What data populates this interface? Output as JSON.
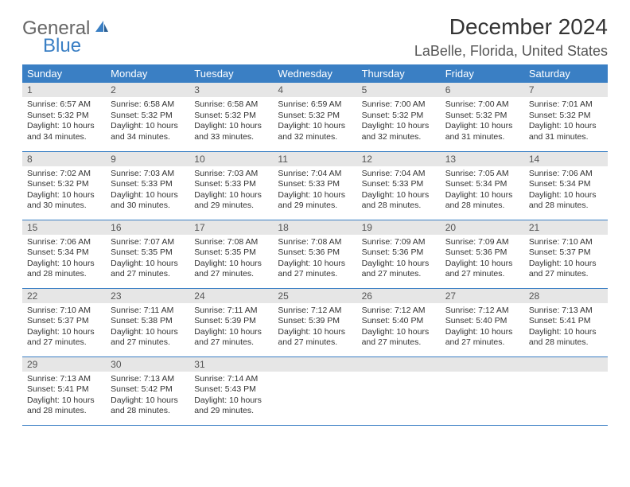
{
  "logo": {
    "word1": "General",
    "word2": "Blue"
  },
  "title": "December 2024",
  "subtitle": "LaBelle, Florida, United States",
  "colors": {
    "accent": "#3a7fc4",
    "daynum_bg": "#e6e6e6",
    "text": "#333333"
  },
  "weekdays": [
    "Sunday",
    "Monday",
    "Tuesday",
    "Wednesday",
    "Thursday",
    "Friday",
    "Saturday"
  ],
  "weeks": [
    [
      {
        "n": "1",
        "sr": "6:57 AM",
        "ss": "5:32 PM",
        "dl": "10 hours and 34 minutes."
      },
      {
        "n": "2",
        "sr": "6:58 AM",
        "ss": "5:32 PM",
        "dl": "10 hours and 34 minutes."
      },
      {
        "n": "3",
        "sr": "6:58 AM",
        "ss": "5:32 PM",
        "dl": "10 hours and 33 minutes."
      },
      {
        "n": "4",
        "sr": "6:59 AM",
        "ss": "5:32 PM",
        "dl": "10 hours and 32 minutes."
      },
      {
        "n": "5",
        "sr": "7:00 AM",
        "ss": "5:32 PM",
        "dl": "10 hours and 32 minutes."
      },
      {
        "n": "6",
        "sr": "7:00 AM",
        "ss": "5:32 PM",
        "dl": "10 hours and 31 minutes."
      },
      {
        "n": "7",
        "sr": "7:01 AM",
        "ss": "5:32 PM",
        "dl": "10 hours and 31 minutes."
      }
    ],
    [
      {
        "n": "8",
        "sr": "7:02 AM",
        "ss": "5:32 PM",
        "dl": "10 hours and 30 minutes."
      },
      {
        "n": "9",
        "sr": "7:03 AM",
        "ss": "5:33 PM",
        "dl": "10 hours and 30 minutes."
      },
      {
        "n": "10",
        "sr": "7:03 AM",
        "ss": "5:33 PM",
        "dl": "10 hours and 29 minutes."
      },
      {
        "n": "11",
        "sr": "7:04 AM",
        "ss": "5:33 PM",
        "dl": "10 hours and 29 minutes."
      },
      {
        "n": "12",
        "sr": "7:04 AM",
        "ss": "5:33 PM",
        "dl": "10 hours and 28 minutes."
      },
      {
        "n": "13",
        "sr": "7:05 AM",
        "ss": "5:34 PM",
        "dl": "10 hours and 28 minutes."
      },
      {
        "n": "14",
        "sr": "7:06 AM",
        "ss": "5:34 PM",
        "dl": "10 hours and 28 minutes."
      }
    ],
    [
      {
        "n": "15",
        "sr": "7:06 AM",
        "ss": "5:34 PM",
        "dl": "10 hours and 28 minutes."
      },
      {
        "n": "16",
        "sr": "7:07 AM",
        "ss": "5:35 PM",
        "dl": "10 hours and 27 minutes."
      },
      {
        "n": "17",
        "sr": "7:08 AM",
        "ss": "5:35 PM",
        "dl": "10 hours and 27 minutes."
      },
      {
        "n": "18",
        "sr": "7:08 AM",
        "ss": "5:36 PM",
        "dl": "10 hours and 27 minutes."
      },
      {
        "n": "19",
        "sr": "7:09 AM",
        "ss": "5:36 PM",
        "dl": "10 hours and 27 minutes."
      },
      {
        "n": "20",
        "sr": "7:09 AM",
        "ss": "5:36 PM",
        "dl": "10 hours and 27 minutes."
      },
      {
        "n": "21",
        "sr": "7:10 AM",
        "ss": "5:37 PM",
        "dl": "10 hours and 27 minutes."
      }
    ],
    [
      {
        "n": "22",
        "sr": "7:10 AM",
        "ss": "5:37 PM",
        "dl": "10 hours and 27 minutes."
      },
      {
        "n": "23",
        "sr": "7:11 AM",
        "ss": "5:38 PM",
        "dl": "10 hours and 27 minutes."
      },
      {
        "n": "24",
        "sr": "7:11 AM",
        "ss": "5:39 PM",
        "dl": "10 hours and 27 minutes."
      },
      {
        "n": "25",
        "sr": "7:12 AM",
        "ss": "5:39 PM",
        "dl": "10 hours and 27 minutes."
      },
      {
        "n": "26",
        "sr": "7:12 AM",
        "ss": "5:40 PM",
        "dl": "10 hours and 27 minutes."
      },
      {
        "n": "27",
        "sr": "7:12 AM",
        "ss": "5:40 PM",
        "dl": "10 hours and 27 minutes."
      },
      {
        "n": "28",
        "sr": "7:13 AM",
        "ss": "5:41 PM",
        "dl": "10 hours and 28 minutes."
      }
    ],
    [
      {
        "n": "29",
        "sr": "7:13 AM",
        "ss": "5:41 PM",
        "dl": "10 hours and 28 minutes."
      },
      {
        "n": "30",
        "sr": "7:13 AM",
        "ss": "5:42 PM",
        "dl": "10 hours and 28 minutes."
      },
      {
        "n": "31",
        "sr": "7:14 AM",
        "ss": "5:43 PM",
        "dl": "10 hours and 29 minutes."
      },
      null,
      null,
      null,
      null
    ]
  ],
  "labels": {
    "sunrise": "Sunrise:",
    "sunset": "Sunset:",
    "daylight": "Daylight:"
  }
}
